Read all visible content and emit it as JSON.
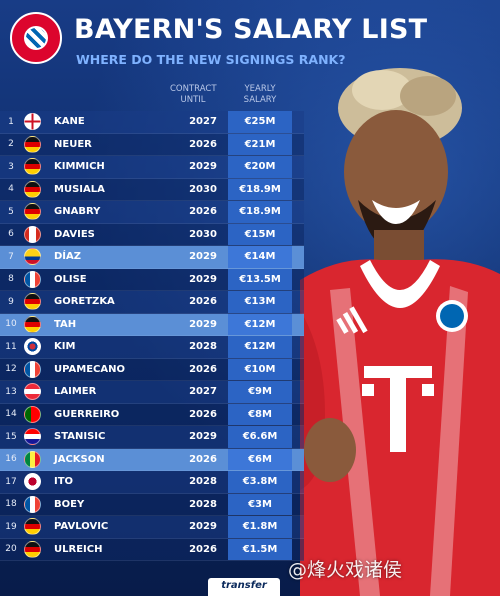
{
  "header": {
    "title": "BAYERN'S SALARY LIST",
    "subtitle": "WHERE DO THE NEW SIGNINGS RANK?",
    "logo_text": "FC BAYERN MÜNCHEN"
  },
  "columns": {
    "contract": "CONTRACT\nUNTIL",
    "salary": "YEARLY\nSALARY"
  },
  "rows": [
    {
      "rank": "1",
      "name": "KANE",
      "until": "2027",
      "salary": "€25M",
      "flag": "england-flag",
      "highlight": false
    },
    {
      "rank": "2",
      "name": "NEUER",
      "until": "2026",
      "salary": "€21M",
      "flag": "germany-flag",
      "highlight": false
    },
    {
      "rank": "3",
      "name": "KIMMICH",
      "until": "2029",
      "salary": "€20M",
      "flag": "germany-flag",
      "highlight": false
    },
    {
      "rank": "4",
      "name": "MUSIALA",
      "until": "2030",
      "salary": "€18.9M",
      "flag": "germany-flag",
      "highlight": false
    },
    {
      "rank": "5",
      "name": "GNABRY",
      "until": "2026",
      "salary": "€18.9M",
      "flag": "germany-flag",
      "highlight": false
    },
    {
      "rank": "6",
      "name": "DAVIES",
      "until": "2030",
      "salary": "€15M",
      "flag": "canada-flag",
      "highlight": false
    },
    {
      "rank": "7",
      "name": "DÍAZ",
      "until": "2029",
      "salary": "€14M",
      "flag": "colombia-flag",
      "highlight": true
    },
    {
      "rank": "8",
      "name": "OLISE",
      "until": "2029",
      "salary": "€13.5M",
      "flag": "france-flag",
      "highlight": false
    },
    {
      "rank": "9",
      "name": "GORETZKA",
      "until": "2026",
      "salary": "€13M",
      "flag": "germany-flag",
      "highlight": false
    },
    {
      "rank": "10",
      "name": "TAH",
      "until": "2029",
      "salary": "€12M",
      "flag": "germany-flag",
      "highlight": true
    },
    {
      "rank": "11",
      "name": "KIM",
      "until": "2028",
      "salary": "€12M",
      "flag": "south-korea-flag",
      "highlight": false
    },
    {
      "rank": "12",
      "name": "UPAMECANO",
      "until": "2026",
      "salary": "€10M",
      "flag": "france-flag",
      "highlight": false
    },
    {
      "rank": "13",
      "name": "LAIMER",
      "until": "2027",
      "salary": "€9M",
      "flag": "austria-flag",
      "highlight": false
    },
    {
      "rank": "14",
      "name": "GUERREIRO",
      "until": "2026",
      "salary": "€8M",
      "flag": "portugal-flag",
      "highlight": false
    },
    {
      "rank": "15",
      "name": "STANISIC",
      "until": "2029",
      "salary": "€6.6M",
      "flag": "croatia-flag",
      "highlight": false
    },
    {
      "rank": "16",
      "name": "JACKSON",
      "until": "2026",
      "salary": "€6M",
      "flag": "senegal-flag",
      "highlight": true
    },
    {
      "rank": "17",
      "name": "ITO",
      "until": "2028",
      "salary": "€3.8M",
      "flag": "japan-flag",
      "highlight": false
    },
    {
      "rank": "18",
      "name": "BOEY",
      "until": "2028",
      "salary": "€3M",
      "flag": "france-flag",
      "highlight": false
    },
    {
      "rank": "19",
      "name": "PAVLOVIC",
      "until": "2029",
      "salary": "€1.8M",
      "flag": "germany-flag",
      "highlight": false
    },
    {
      "rank": "20",
      "name": "ULREICH",
      "until": "2026",
      "salary": "€1.5M",
      "flag": "germany-flag",
      "highlight": false
    }
  ],
  "footer": {
    "brand": "transfer",
    "watermark": "@烽火戏诸侯"
  },
  "player_shirt": {
    "sponsor_letter": "T"
  },
  "colors": {
    "background": "#0d2a66",
    "salary_cell": "#2c64c4",
    "highlight_row": "#5b8fd6",
    "subtitle": "#7fb2ff",
    "bayern_red": "#dc052d"
  }
}
